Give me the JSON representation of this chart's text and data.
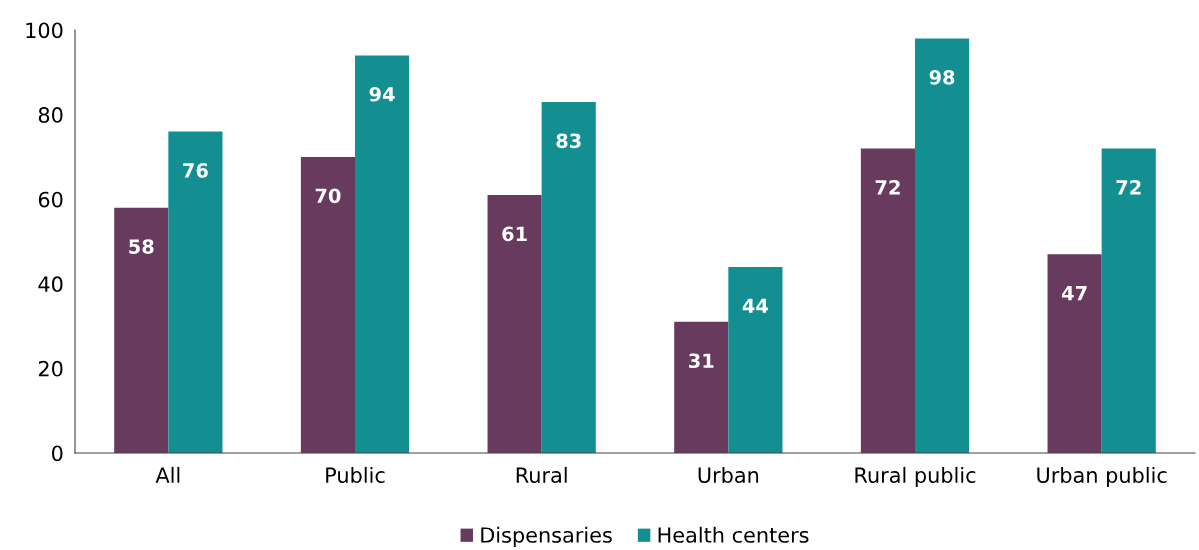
{
  "chart_data": {
    "type": "bar",
    "categories": [
      "All",
      "Public",
      "Rural",
      "Urban",
      "Rural public",
      "Urban public"
    ],
    "series": [
      {
        "name": "Dispensaries",
        "color": "#673a5e",
        "values": [
          58,
          70,
          61,
          31,
          72,
          47
        ]
      },
      {
        "name": "Health centers",
        "color": "#138f91",
        "values": [
          76,
          94,
          83,
          44,
          98,
          72
        ]
      }
    ],
    "ylim": [
      0,
      100
    ],
    "yticks": [
      0,
      20,
      40,
      60,
      80,
      100
    ],
    "grid": false,
    "legend": "bottom",
    "data_labels": true
  }
}
